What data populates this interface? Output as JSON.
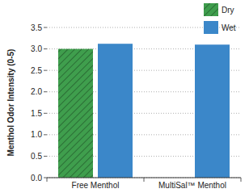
{
  "chart_data": {
    "type": "bar",
    "y_label": "Menthol Odor Intensity (0-5)",
    "categories": [
      "Free Menthol",
      "MultiSal™ Menthol"
    ],
    "series": [
      {
        "name": "Dry",
        "color": "#3f9e4d",
        "values": [
          3.0,
          0
        ]
      },
      {
        "name": "Wet",
        "color": "#3b87c9",
        "values": [
          3.12,
          3.1
        ]
      }
    ],
    "ylim": [
      0,
      3.5
    ],
    "yticks": [
      {
        "value": 0,
        "label": "0.0"
      },
      {
        "value": 0.5,
        "label": "0.5"
      },
      {
        "value": 1,
        "label": "1.0"
      },
      {
        "value": 1.5,
        "label": "1.5"
      },
      {
        "value": 2,
        "label": "2.0"
      },
      {
        "value": 2.5,
        "label": "2.5"
      },
      {
        "value": 3,
        "label": "3.0"
      },
      {
        "value": 3.5,
        "label": "3.5"
      }
    ],
    "grid": true,
    "legend": "upper right"
  }
}
